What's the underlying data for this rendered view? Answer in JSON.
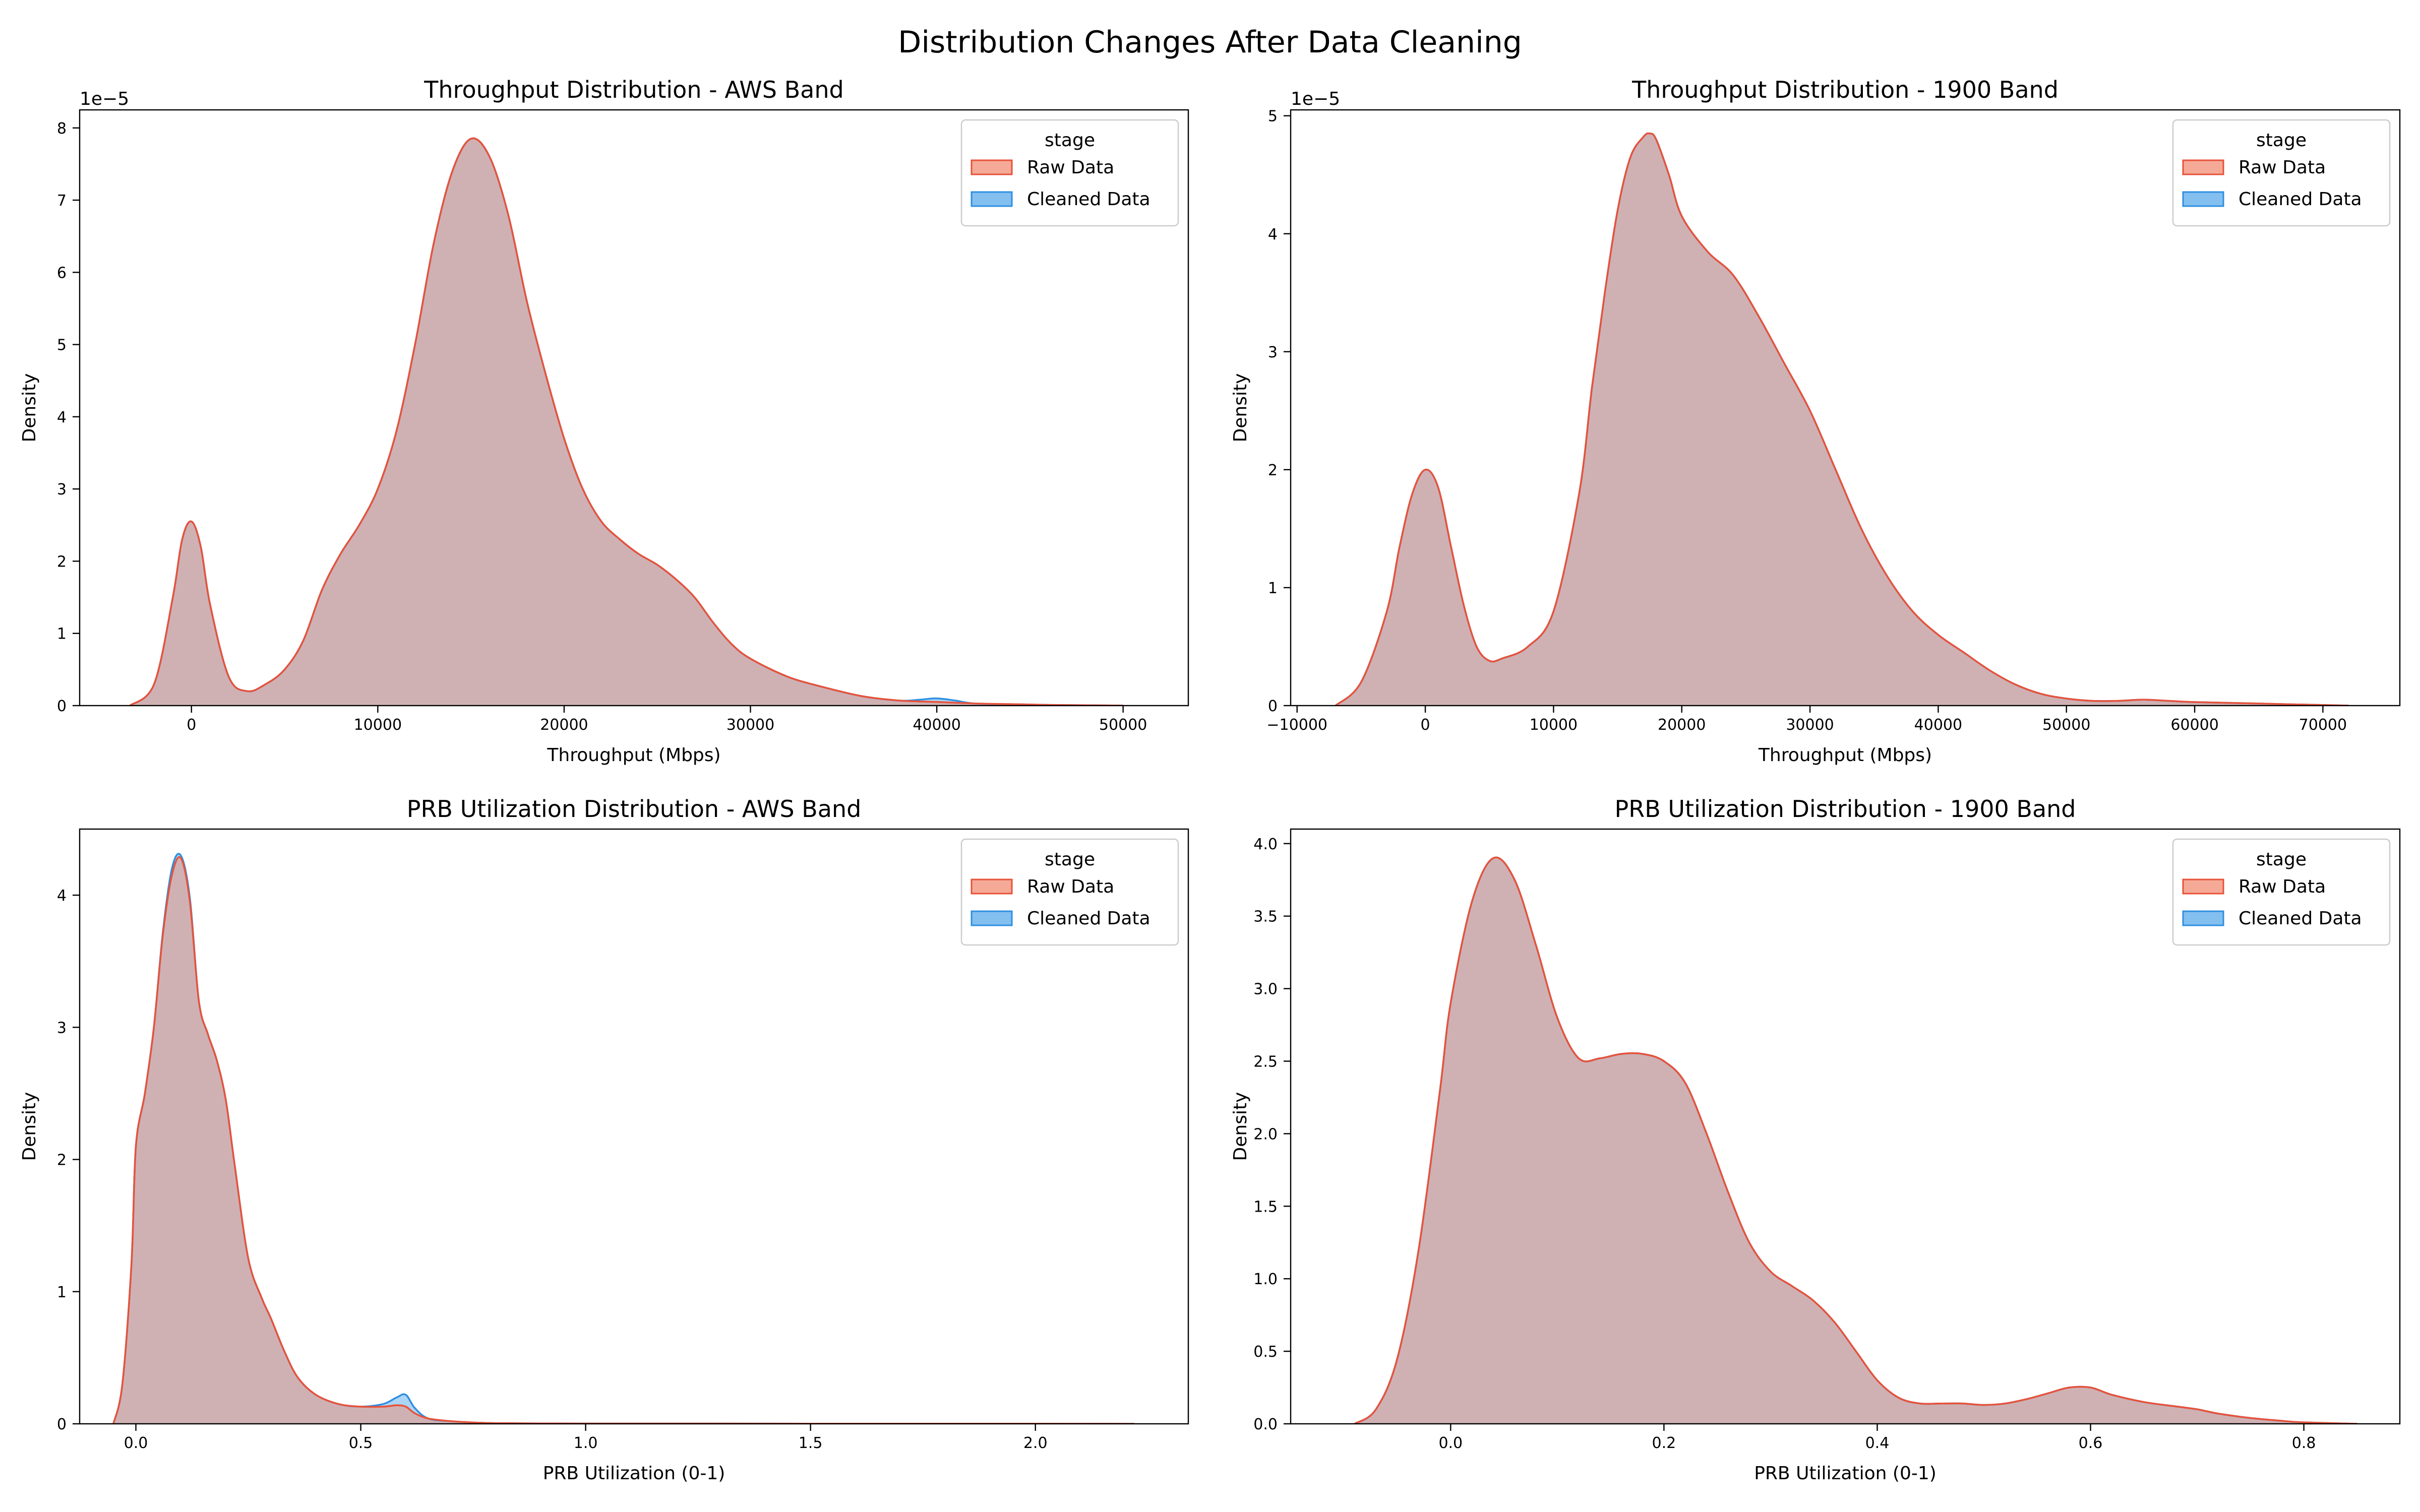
{
  "figure": {
    "title": "Distribution Changes After Data Cleaning"
  },
  "colors": {
    "raw_fill": "#f28e74",
    "raw_line": "#e8523a",
    "cleaned_fill": "#5aa9ea",
    "cleaned_line": "#2f8fe0",
    "overlap": "#c9939a"
  },
  "chart_data": [
    {
      "type": "area",
      "title": "Throughput Distribution - AWS Band",
      "xlabel": "Throughput (Mbps)",
      "ylabel": "Density",
      "xlim": [
        -6000,
        53500
      ],
      "ylim": [
        0,
        8.25
      ],
      "xticks": [
        0,
        10000,
        20000,
        30000,
        40000,
        50000
      ],
      "yticks": [
        0,
        1,
        2,
        3,
        4,
        5,
        6,
        7,
        8
      ],
      "y_offset_label": "1e−5",
      "grid": false,
      "legend": {
        "title": "stage",
        "position": "top-right",
        "entries": [
          "Raw Data",
          "Cleaned Data"
        ]
      },
      "series": [
        {
          "name": "Raw Data",
          "x": [
            -3300,
            -2000,
            -1000,
            -500,
            0,
            500,
            1000,
            2000,
            3000,
            4000,
            5000,
            6000,
            7000,
            8000,
            9000,
            10000,
            11000,
            12000,
            13000,
            14000,
            15000,
            16000,
            17000,
            18000,
            19000,
            20000,
            21000,
            22000,
            23000,
            24000,
            25000,
            26000,
            27000,
            28000,
            29000,
            30000,
            32000,
            34000,
            36000,
            38000,
            40000,
            42000,
            44000,
            46000,
            48000,
            50000
          ],
          "y": [
            0,
            0.3,
            1.5,
            2.3,
            2.55,
            2.2,
            1.4,
            0.4,
            0.2,
            0.3,
            0.5,
            0.9,
            1.6,
            2.1,
            2.5,
            3.0,
            3.8,
            5.0,
            6.4,
            7.4,
            7.85,
            7.6,
            6.8,
            5.6,
            4.6,
            3.7,
            3.0,
            2.55,
            2.3,
            2.1,
            1.95,
            1.75,
            1.5,
            1.15,
            0.85,
            0.65,
            0.4,
            0.25,
            0.13,
            0.07,
            0.05,
            0.03,
            0.02,
            0.01,
            0.005,
            0
          ]
        },
        {
          "name": "Cleaned Data",
          "x": [
            -3300,
            -2000,
            -1000,
            -500,
            0,
            500,
            1000,
            2000,
            3000,
            4000,
            5000,
            6000,
            7000,
            8000,
            9000,
            10000,
            11000,
            12000,
            13000,
            14000,
            15000,
            16000,
            17000,
            18000,
            19000,
            20000,
            21000,
            22000,
            23000,
            24000,
            25000,
            26000,
            27000,
            28000,
            29000,
            30000,
            32000,
            34000,
            36000,
            38000,
            39000,
            40000,
            41000,
            42000,
            44000,
            46000,
            48000,
            50000
          ],
          "y": [
            0,
            0.3,
            1.5,
            2.3,
            2.55,
            2.2,
            1.4,
            0.4,
            0.2,
            0.3,
            0.5,
            0.9,
            1.6,
            2.1,
            2.5,
            3.0,
            3.8,
            5.0,
            6.4,
            7.4,
            7.85,
            7.6,
            6.8,
            5.6,
            4.6,
            3.7,
            3.0,
            2.55,
            2.3,
            2.1,
            1.95,
            1.75,
            1.5,
            1.15,
            0.85,
            0.65,
            0.4,
            0.25,
            0.13,
            0.07,
            0.08,
            0.1,
            0.07,
            0.03,
            0.02,
            0.01,
            0.005,
            0
          ]
        }
      ]
    },
    {
      "type": "area",
      "title": "Throughput Distribution - 1900 Band",
      "xlabel": "Throughput (Mbps)",
      "ylabel": "Density",
      "xlim": [
        -10500,
        76000
      ],
      "ylim": [
        0,
        5.05
      ],
      "xticks": [
        -10000,
        0,
        10000,
        20000,
        30000,
        40000,
        50000,
        60000,
        70000
      ],
      "yticks": [
        0,
        1,
        2,
        3,
        4,
        5
      ],
      "y_offset_label": "1e−5",
      "grid": false,
      "legend": {
        "title": "stage",
        "position": "top-right",
        "entries": [
          "Raw Data",
          "Cleaned Data"
        ]
      },
      "series": [
        {
          "name": "Raw Data",
          "x": [
            -7000,
            -5000,
            -3000,
            -2000,
            -1000,
            0,
            1000,
            2000,
            3000,
            4000,
            5000,
            6000,
            8000,
            10000,
            12000,
            13000,
            14000,
            15000,
            16000,
            17000,
            17500,
            18000,
            19000,
            20000,
            22000,
            24000,
            26000,
            28000,
            30000,
            32000,
            34000,
            36000,
            38000,
            40000,
            42000,
            44000,
            46000,
            48000,
            50000,
            52000,
            54000,
            56000,
            58000,
            60000,
            64000,
            68000,
            72000
          ],
          "y": [
            0,
            0.2,
            0.8,
            1.35,
            1.8,
            2.0,
            1.85,
            1.35,
            0.85,
            0.5,
            0.38,
            0.4,
            0.5,
            0.8,
            1.8,
            2.7,
            3.5,
            4.2,
            4.65,
            4.82,
            4.85,
            4.8,
            4.5,
            4.15,
            3.85,
            3.65,
            3.3,
            2.9,
            2.5,
            2.0,
            1.5,
            1.1,
            0.8,
            0.6,
            0.45,
            0.3,
            0.18,
            0.1,
            0.06,
            0.04,
            0.04,
            0.05,
            0.04,
            0.03,
            0.02,
            0.01,
            0
          ]
        },
        {
          "name": "Cleaned Data",
          "x": [
            -7000,
            -5000,
            -3000,
            -2000,
            -1000,
            0,
            1000,
            2000,
            3000,
            4000,
            5000,
            6000,
            8000,
            10000,
            12000,
            13000,
            14000,
            15000,
            16000,
            17000,
            17500,
            18000,
            19000,
            20000,
            22000,
            24000,
            26000,
            28000,
            30000,
            32000,
            34000,
            36000,
            38000,
            40000,
            42000,
            44000,
            46000,
            48000,
            50000,
            52000,
            54000,
            56000,
            58000,
            60000,
            64000,
            68000,
            72000
          ],
          "y": [
            0,
            0.2,
            0.8,
            1.35,
            1.8,
            2.0,
            1.85,
            1.35,
            0.85,
            0.5,
            0.38,
            0.4,
            0.5,
            0.8,
            1.8,
            2.7,
            3.5,
            4.2,
            4.65,
            4.82,
            4.85,
            4.8,
            4.5,
            4.15,
            3.85,
            3.65,
            3.3,
            2.9,
            2.5,
            2.0,
            1.5,
            1.1,
            0.8,
            0.6,
            0.45,
            0.3,
            0.18,
            0.1,
            0.06,
            0.04,
            0.04,
            0.05,
            0.04,
            0.03,
            0.02,
            0.01,
            0
          ]
        }
      ]
    },
    {
      "type": "area",
      "title": "PRB Utilization Distribution - AWS Band",
      "xlabel": "PRB Utilization (0-1)",
      "ylabel": "Density",
      "xlim": [
        -0.125,
        2.34
      ],
      "ylim": [
        0,
        4.5
      ],
      "xticks": [
        0.0,
        0.5,
        1.0,
        1.5,
        2.0
      ],
      "yticks": [
        0,
        1,
        2,
        3,
        4
      ],
      "grid": false,
      "legend": {
        "title": "stage",
        "position": "top-right",
        "entries": [
          "Raw Data",
          "Cleaned Data"
        ]
      },
      "series": [
        {
          "name": "Raw Data",
          "x": [
            -0.05,
            -0.03,
            -0.01,
            0.0,
            0.02,
            0.04,
            0.06,
            0.08,
            0.1,
            0.12,
            0.14,
            0.16,
            0.18,
            0.2,
            0.22,
            0.25,
            0.28,
            0.3,
            0.33,
            0.36,
            0.4,
            0.45,
            0.5,
            0.55,
            0.58,
            0.6,
            0.62,
            0.65,
            0.7,
            0.75,
            0.8,
            0.9,
            1.0,
            1.2,
            1.5,
            1.8,
            2.0,
            2.22
          ],
          "y": [
            0,
            0.3,
            1.2,
            2.1,
            2.5,
            3.0,
            3.7,
            4.15,
            4.28,
            3.95,
            3.2,
            2.95,
            2.75,
            2.45,
            1.95,
            1.25,
            0.95,
            0.8,
            0.55,
            0.35,
            0.22,
            0.15,
            0.13,
            0.13,
            0.14,
            0.13,
            0.08,
            0.04,
            0.02,
            0.01,
            0.005,
            0.003,
            0.002,
            0.002,
            0.001,
            0.001,
            0.001,
            0
          ]
        },
        {
          "name": "Cleaned Data",
          "x": [
            -0.05,
            -0.03,
            -0.01,
            0.0,
            0.02,
            0.04,
            0.06,
            0.08,
            0.1,
            0.12,
            0.14,
            0.16,
            0.18,
            0.2,
            0.22,
            0.25,
            0.28,
            0.3,
            0.33,
            0.36,
            0.4,
            0.45,
            0.5,
            0.55,
            0.58,
            0.6,
            0.62,
            0.65,
            0.7,
            0.75,
            0.8,
            0.9,
            1.0,
            1.2,
            1.5,
            1.8,
            2.0,
            2.22
          ],
          "y": [
            0,
            0.3,
            1.2,
            2.1,
            2.5,
            3.0,
            3.72,
            4.2,
            4.3,
            3.98,
            3.2,
            2.95,
            2.75,
            2.45,
            1.95,
            1.25,
            0.95,
            0.8,
            0.55,
            0.35,
            0.22,
            0.15,
            0.13,
            0.15,
            0.2,
            0.22,
            0.12,
            0.04,
            0.02,
            0.01,
            0.005,
            0.003,
            0.002,
            0.002,
            0.001,
            0.001,
            0.001,
            0
          ]
        }
      ]
    },
    {
      "type": "area",
      "title": "PRB Utilization Distribution - 1900 Band",
      "xlabel": "PRB Utilization (0-1)",
      "ylabel": "Density",
      "xlim": [
        -0.15,
        0.89
      ],
      "ylim": [
        0,
        4.1
      ],
      "xticks": [
        0.0,
        0.2,
        0.4,
        0.6,
        0.8
      ],
      "yticks": [
        0.0,
        0.5,
        1.0,
        1.5,
        2.0,
        2.5,
        3.0,
        3.5,
        4.0
      ],
      "grid": false,
      "legend": {
        "title": "stage",
        "position": "top-right",
        "entries": [
          "Raw Data",
          "Cleaned Data"
        ]
      },
      "series": [
        {
          "name": "Raw Data",
          "x": [
            -0.09,
            -0.07,
            -0.05,
            -0.03,
            -0.01,
            0.0,
            0.02,
            0.04,
            0.06,
            0.08,
            0.1,
            0.12,
            0.14,
            0.16,
            0.18,
            0.2,
            0.22,
            0.24,
            0.26,
            0.28,
            0.3,
            0.32,
            0.34,
            0.36,
            0.38,
            0.4,
            0.42,
            0.44,
            0.46,
            0.48,
            0.5,
            0.52,
            0.54,
            0.56,
            0.58,
            0.6,
            0.62,
            0.65,
            0.68,
            0.7,
            0.72,
            0.75,
            0.78,
            0.8,
            0.85
          ],
          "y": [
            0,
            0.1,
            0.45,
            1.2,
            2.3,
            2.9,
            3.6,
            3.9,
            3.75,
            3.3,
            2.8,
            2.52,
            2.52,
            2.55,
            2.55,
            2.5,
            2.35,
            2.0,
            1.6,
            1.25,
            1.05,
            0.95,
            0.85,
            0.7,
            0.5,
            0.3,
            0.18,
            0.14,
            0.14,
            0.14,
            0.13,
            0.14,
            0.17,
            0.21,
            0.25,
            0.25,
            0.2,
            0.15,
            0.12,
            0.1,
            0.07,
            0.04,
            0.02,
            0.01,
            0
          ]
        },
        {
          "name": "Cleaned Data",
          "x": [
            -0.09,
            -0.07,
            -0.05,
            -0.03,
            -0.01,
            0.0,
            0.02,
            0.04,
            0.06,
            0.08,
            0.1,
            0.12,
            0.14,
            0.16,
            0.18,
            0.2,
            0.22,
            0.24,
            0.26,
            0.28,
            0.3,
            0.32,
            0.34,
            0.36,
            0.38,
            0.4,
            0.42,
            0.44,
            0.46,
            0.48,
            0.5,
            0.52,
            0.54,
            0.56,
            0.58,
            0.6,
            0.62,
            0.65,
            0.68,
            0.7,
            0.72,
            0.75,
            0.78,
            0.8,
            0.85
          ],
          "y": [
            0,
            0.1,
            0.45,
            1.2,
            2.3,
            2.9,
            3.6,
            3.9,
            3.75,
            3.3,
            2.8,
            2.52,
            2.52,
            2.55,
            2.55,
            2.5,
            2.35,
            2.0,
            1.6,
            1.25,
            1.05,
            0.95,
            0.85,
            0.7,
            0.5,
            0.3,
            0.18,
            0.14,
            0.14,
            0.14,
            0.13,
            0.14,
            0.17,
            0.21,
            0.25,
            0.25,
            0.2,
            0.15,
            0.12,
            0.1,
            0.07,
            0.04,
            0.02,
            0.01,
            0
          ]
        }
      ]
    }
  ]
}
